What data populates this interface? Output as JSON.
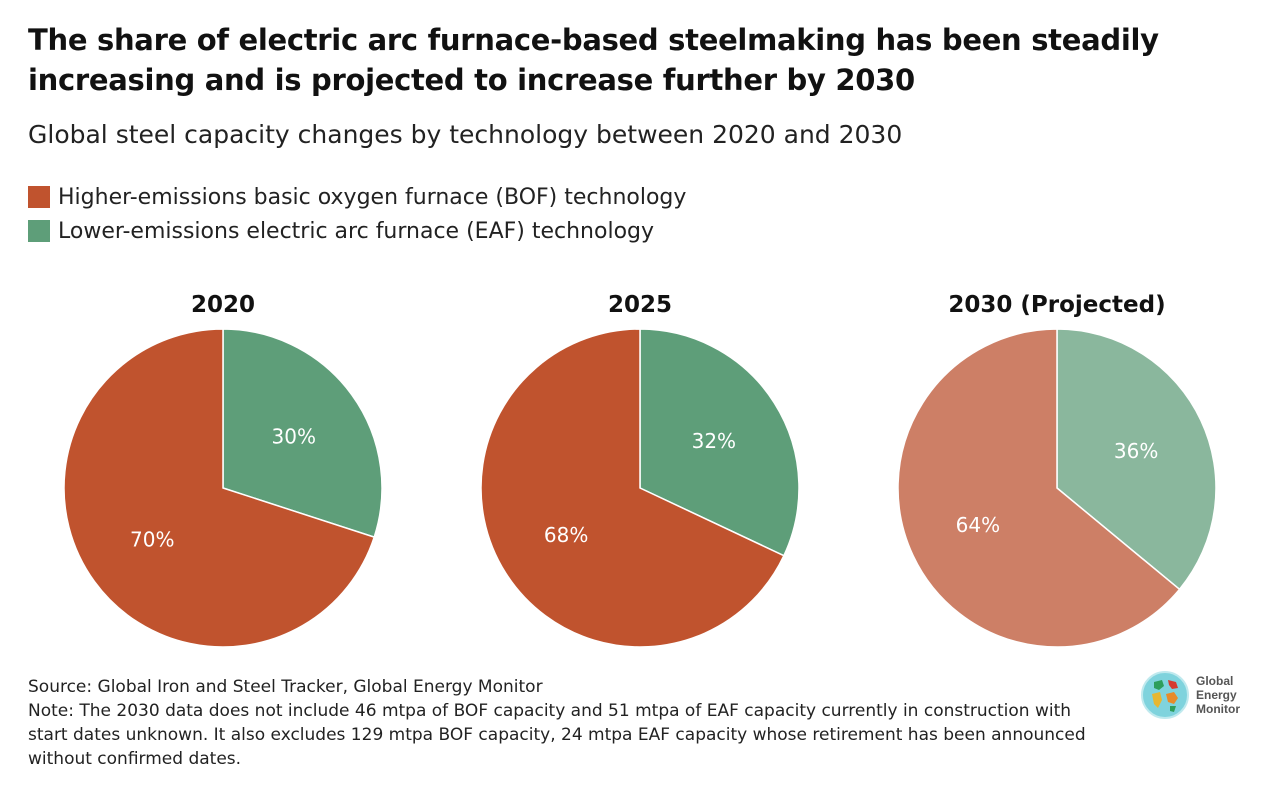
{
  "header": {
    "title": "The share of electric arc furnace-based steelmaking has been steadily increasing and is projected to increase further by 2030",
    "subtitle": "Global steel capacity changes by technology between 2020 and 2030"
  },
  "legend": {
    "items": [
      {
        "label": "Higher-emissions basic oxygen furnace (BOF) technology",
        "color": "#C0532E"
      },
      {
        "label": "Lower-emissions electric arc furnace (EAF) technology",
        "color": "#5E9E79"
      }
    ]
  },
  "chart_data": {
    "type": "pie",
    "title": "Global steel capacity changes by technology between 2020 and 2030",
    "categories": [
      "BOF",
      "EAF"
    ],
    "colors": {
      "BOF": "#C0532E",
      "EAF": "#5E9E79",
      "BOF_projected": "#CD7F66",
      "EAF_projected": "#8AB79D"
    },
    "pies": [
      {
        "title": "2020",
        "projected": false,
        "values": {
          "BOF": 70,
          "EAF": 30
        },
        "labels": {
          "BOF": "70%",
          "EAF": "30%"
        }
      },
      {
        "title": "2025",
        "projected": false,
        "values": {
          "BOF": 68,
          "EAF": 32
        },
        "labels": {
          "BOF": "68%",
          "EAF": "32%"
        }
      },
      {
        "title": "2030 (Projected)",
        "projected": true,
        "values": {
          "BOF": 64,
          "EAF": 36
        },
        "labels": {
          "BOF": "64%",
          "EAF": "36%"
        }
      }
    ],
    "unit": "%"
  },
  "footer": {
    "source": "Source: Global Iron and Steel Tracker, Global Energy Monitor",
    "note": "Note: The 2030 data does not include 46 mtpa of BOF capacity and 51 mtpa of EAF capacity currently in construction with start dates unknown. It also excludes 129 mtpa BOF capacity, 24 mtpa EAF capacity whose retirement has been announced without confirmed dates."
  },
  "logo": {
    "line1": "Global",
    "line2": "Energy",
    "line3": "Monitor",
    "icon": "globe-icon"
  }
}
